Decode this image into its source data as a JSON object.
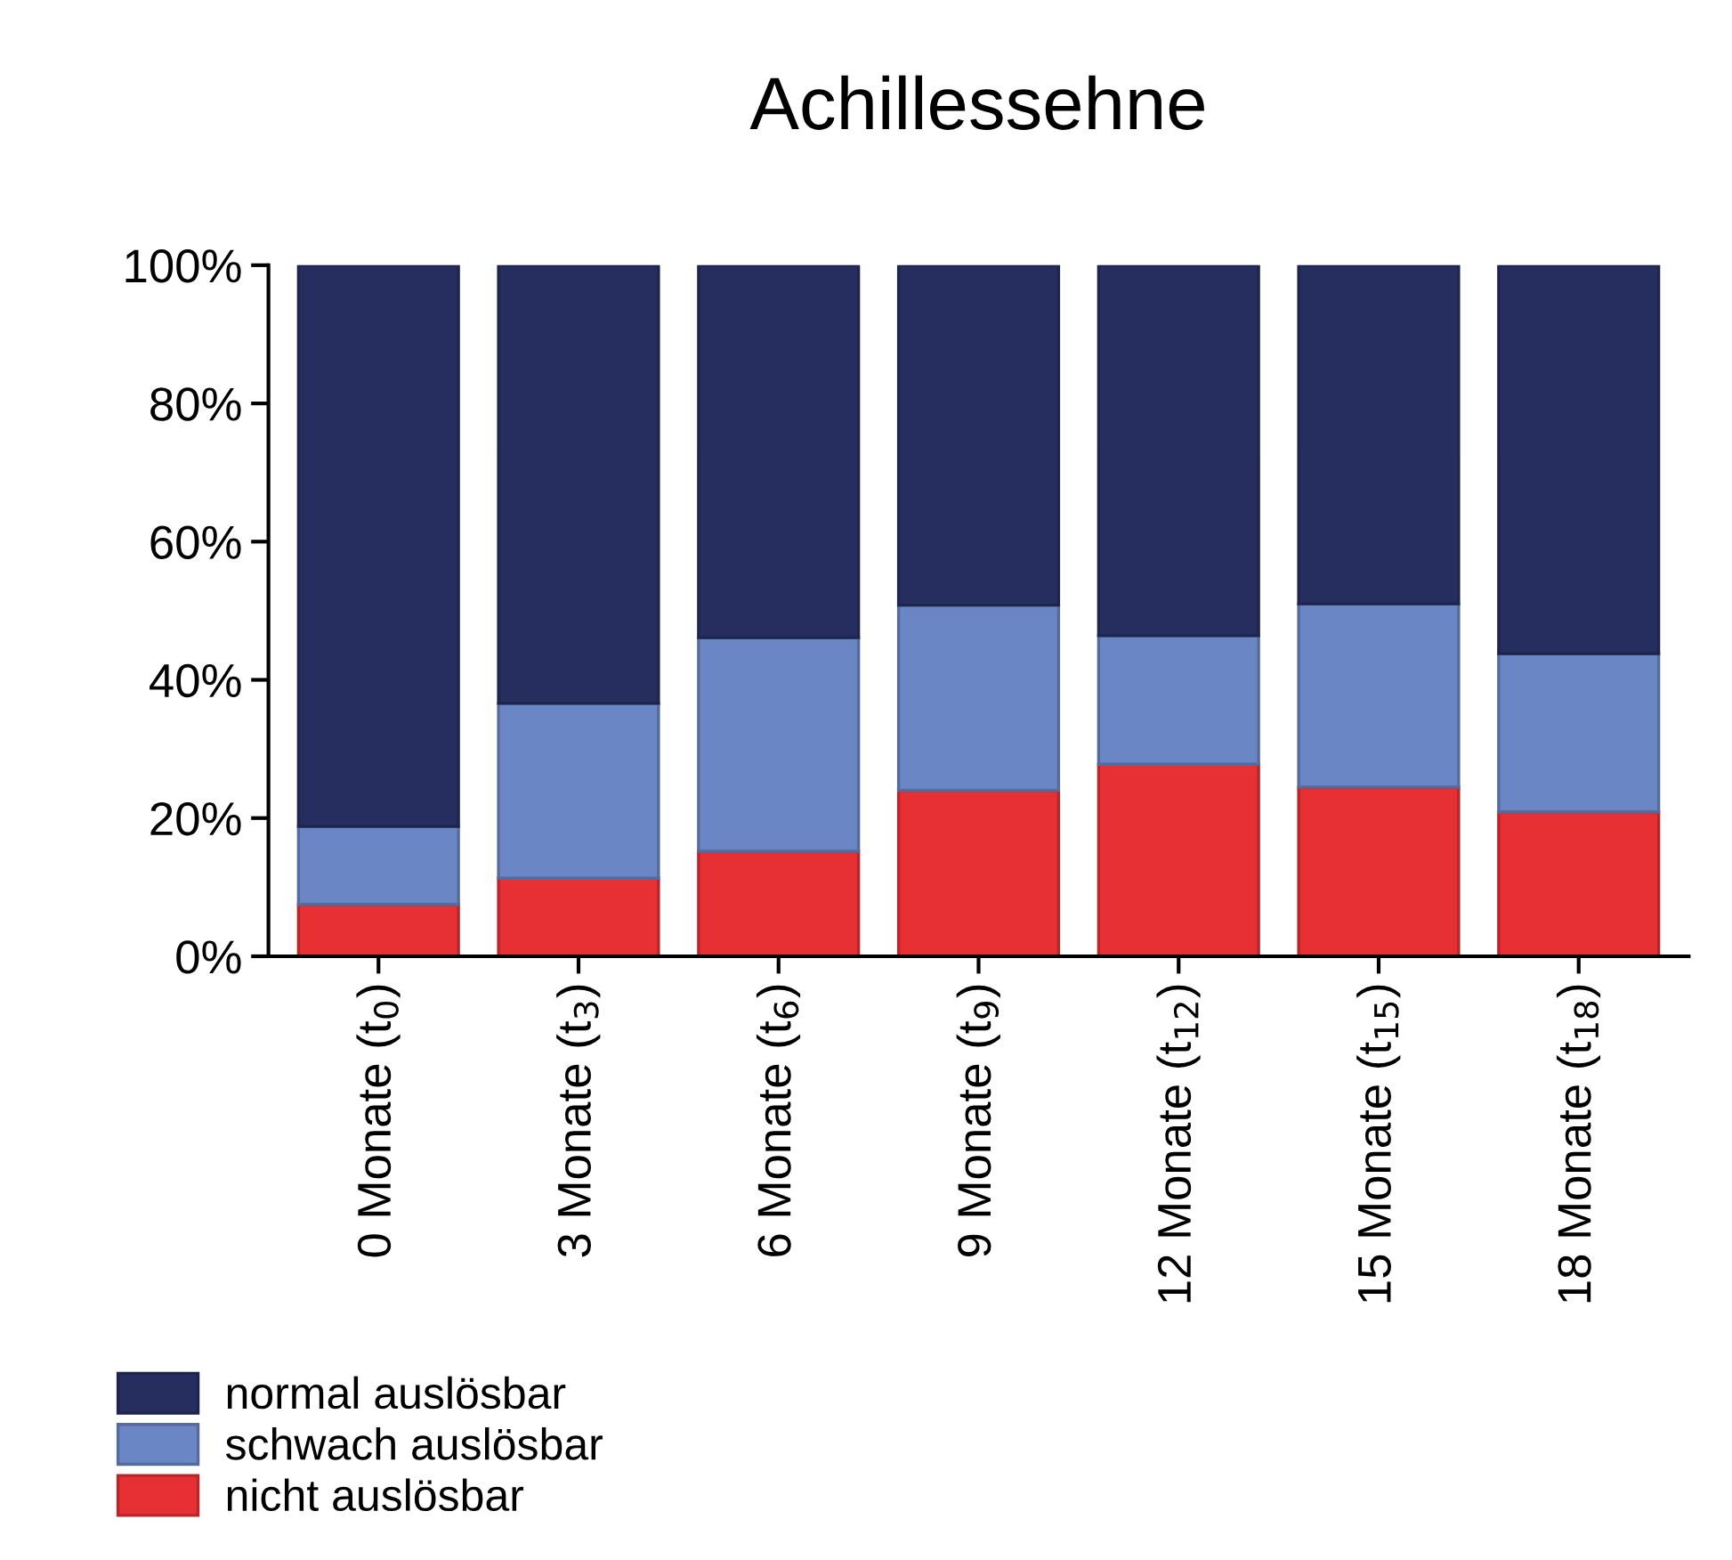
{
  "chart_data": {
    "type": "bar",
    "stacked": true,
    "title": "Achillessehne",
    "categories": [
      "0 Monate (t$_{0}$)",
      "3 Monate (t$_{3}$)",
      "6 Monate (t$_{6}$)",
      "9 Monate (t$_{9}$)",
      "12 Monate (t$_{12}$)",
      "15 Monate (t$_{15}$)",
      "18 Monate (t$_{18}$)"
    ],
    "series": [
      {
        "name": "nicht auslösbar",
        "color": "#e63034",
        "values": [
          7.5,
          11.3,
          15.2,
          24.0,
          27.8,
          24.5,
          20.9
        ]
      },
      {
        "name": "schwach auslösbar",
        "color": "#6a86c4",
        "values": [
          11.3,
          25.3,
          30.9,
          26.8,
          18.6,
          26.5,
          22.9
        ]
      },
      {
        "name": "normal auslösbar",
        "color": "#262e5f",
        "values": [
          81.2,
          63.4,
          53.9,
          49.2,
          53.6,
          49.0,
          56.2
        ]
      }
    ],
    "ylim": [
      0,
      100
    ],
    "yticks": [
      {
        "value": 0,
        "label": "0%"
      },
      {
        "value": 20,
        "label": "20%"
      },
      {
        "value": 40,
        "label": "40%"
      },
      {
        "value": 60,
        "label": "60%"
      },
      {
        "value": 80,
        "label": "80%"
      },
      {
        "value": 100,
        "label": "100%"
      }
    ],
    "grid": false,
    "legend": "bottom left"
  }
}
